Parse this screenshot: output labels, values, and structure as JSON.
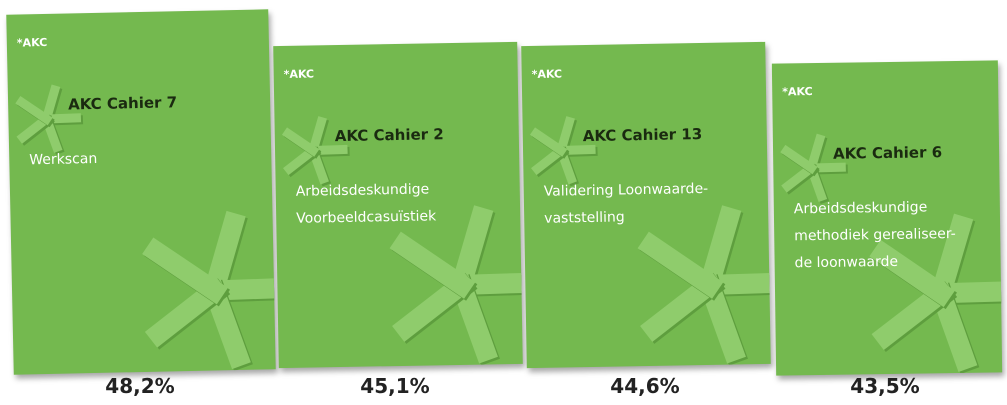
{
  "covers": [
    {
      "logo": "*AKC",
      "series": "AKC Cahier 7",
      "title_lines": [
        "Werkscan"
      ],
      "score": "48,2%"
    },
    {
      "logo": "*AKC",
      "series": "AKC Cahier 2",
      "title_lines": [
        "Arbeidsdeskundige",
        "Voorbeeldcasuïstiek"
      ],
      "score": "45,1%"
    },
    {
      "logo": "*AKC",
      "series": "AKC Cahier 13",
      "title_lines": [
        "Validering Loonwaarde-",
        "vaststelling"
      ],
      "score": "44,6%"
    },
    {
      "logo": "*AKC",
      "series": "AKC Cahier 6",
      "title_lines": [
        "Arbeidsdeskundige",
        "methodiek gerealiseer-",
        "de loonwaarde"
      ],
      "score": "43,5%"
    }
  ]
}
